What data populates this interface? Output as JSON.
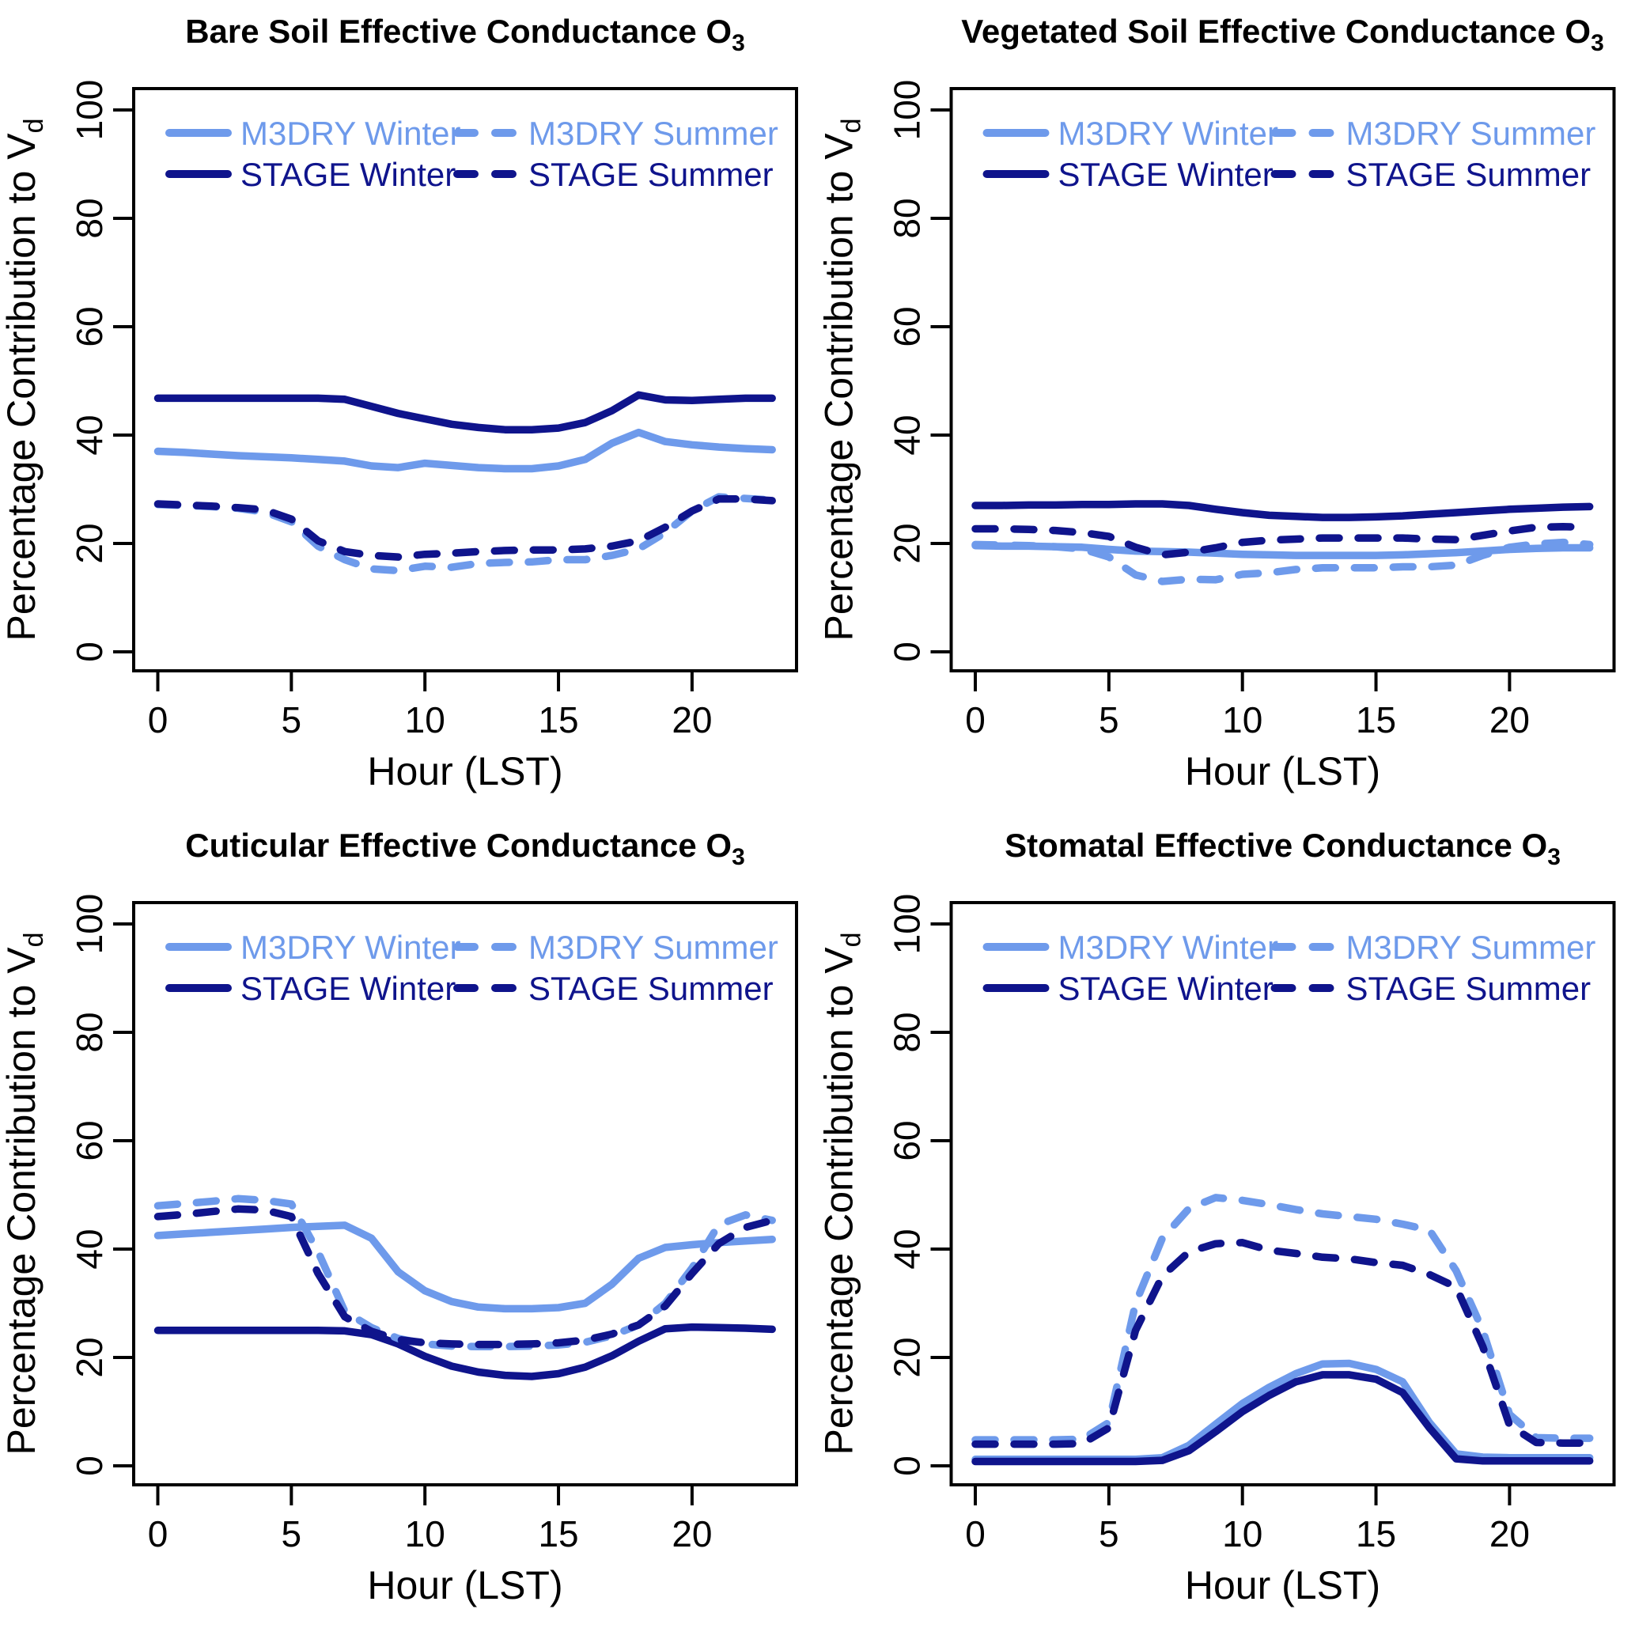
{
  "colors": {
    "m3dry": "#6E9AEB",
    "stage": "#0F148C",
    "axis": "#000000",
    "background": "#FFFFFF"
  },
  "legend": {
    "labels": [
      "M3DRY Winter",
      "STAGE Winter",
      "M3DRY Summer",
      "STAGE Summer"
    ]
  },
  "axes": {
    "xlabel": "Hour (LST)",
    "ylabel_main": "Percentage Contribution to V",
    "ylabel_sub": "d",
    "xticks": [
      0,
      5,
      10,
      15,
      20
    ],
    "yticks": [
      0,
      20,
      40,
      60,
      80,
      100
    ],
    "xlim": [
      0,
      23
    ],
    "ylim": [
      0,
      100
    ]
  },
  "chart_data": [
    {
      "type": "line",
      "slug": "bare-soil",
      "title_main": "Bare Soil Effective Conductance O",
      "title_sub": "3",
      "xlabel": "Hour (LST)",
      "ylabel": "Percentage Contribution to Vd",
      "x": [
        0,
        1,
        2,
        3,
        4,
        5,
        6,
        7,
        8,
        9,
        10,
        11,
        12,
        13,
        14,
        15,
        16,
        17,
        18,
        19,
        20,
        21,
        22,
        23
      ],
      "series": [
        {
          "name": "M3DRY Winter",
          "model": "m3dry",
          "season": "winter",
          "dashed": false,
          "values": [
            37,
            36.8,
            36.5,
            36.2,
            36,
            35.8,
            35.5,
            35.2,
            34.3,
            34,
            34.8,
            34.4,
            34,
            33.8,
            33.8,
            34.3,
            35.5,
            38.5,
            40.5,
            38.8,
            38.2,
            37.8,
            37.5,
            37.3
          ]
        },
        {
          "name": "STAGE Winter",
          "model": "stage",
          "season": "winter",
          "dashed": false,
          "values": [
            46.8,
            46.8,
            46.8,
            46.8,
            46.8,
            46.8,
            46.8,
            46.6,
            45.3,
            44,
            43,
            42,
            41.4,
            41,
            41,
            41.3,
            42.3,
            44.5,
            47.4,
            46.5,
            46.4,
            46.6,
            46.8,
            46.8
          ]
        },
        {
          "name": "M3DRY Summer",
          "model": "m3dry",
          "season": "summer",
          "dashed": true,
          "values": [
            27.2,
            27,
            26.8,
            26.5,
            25.8,
            24,
            19.5,
            17,
            15.3,
            15,
            15.8,
            15.6,
            16.3,
            16.5,
            16.6,
            17,
            17,
            17.8,
            19,
            22,
            26,
            28.6,
            28.3,
            28
          ]
        },
        {
          "name": "STAGE Summer",
          "model": "stage",
          "season": "summer",
          "dashed": true,
          "values": [
            27.3,
            27.1,
            26.9,
            26.6,
            26.2,
            24.5,
            20.5,
            18.5,
            17.8,
            17.5,
            18,
            18.2,
            18.5,
            18.7,
            18.8,
            18.8,
            19,
            19.5,
            20.5,
            23,
            26,
            28.2,
            28.2,
            27.9
          ]
        }
      ]
    },
    {
      "type": "line",
      "slug": "vegetated-soil",
      "title_main": "Vegetated Soil Effective Conductance O",
      "title_sub": "3",
      "xlabel": "Hour (LST)",
      "ylabel": "Percentage Contribution to Vd",
      "x": [
        0,
        1,
        2,
        3,
        4,
        5,
        6,
        7,
        8,
        9,
        10,
        11,
        12,
        13,
        14,
        15,
        16,
        17,
        18,
        19,
        20,
        21,
        22,
        23
      ],
      "series": [
        {
          "name": "M3DRY Winter",
          "model": "m3dry",
          "season": "winter",
          "dashed": false,
          "values": [
            19.6,
            19.5,
            19.5,
            19.4,
            19.3,
            18.9,
            18.6,
            18.5,
            18.4,
            18.2,
            18,
            17.9,
            17.8,
            17.8,
            17.8,
            17.8,
            17.9,
            18.1,
            18.3,
            18.6,
            18.9,
            19.1,
            19.2,
            19.2
          ]
        },
        {
          "name": "STAGE Winter",
          "model": "stage",
          "season": "winter",
          "dashed": false,
          "values": [
            27,
            27,
            27.1,
            27.1,
            27.2,
            27.2,
            27.3,
            27.3,
            27,
            26.3,
            25.7,
            25.2,
            25,
            24.8,
            24.8,
            24.9,
            25.1,
            25.4,
            25.7,
            26,
            26.3,
            26.5,
            26.7,
            26.8
          ]
        },
        {
          "name": "M3DRY Summer",
          "model": "m3dry",
          "season": "summer",
          "dashed": true,
          "values": [
            19.8,
            19.7,
            19.6,
            19.4,
            19,
            17.5,
            14.2,
            13,
            13.4,
            13.3,
            14.3,
            14.6,
            15.2,
            15.5,
            15.5,
            15.5,
            15.7,
            15.7,
            16,
            17.8,
            19.3,
            19.9,
            20.2,
            19.8
          ]
        },
        {
          "name": "STAGE Summer",
          "model": "stage",
          "season": "summer",
          "dashed": true,
          "values": [
            22.7,
            22.7,
            22.6,
            22.4,
            22,
            21.3,
            19.3,
            17.9,
            18.4,
            19.2,
            20.2,
            20.6,
            20.8,
            21,
            21,
            21,
            21,
            20.8,
            20.7,
            21.5,
            22.3,
            23,
            23.1,
            23
          ]
        }
      ]
    },
    {
      "type": "line",
      "slug": "cuticular",
      "title_main": "Cuticular Effective Conductance O",
      "title_sub": "3",
      "xlabel": "Hour (LST)",
      "ylabel": "Percentage Contribution to Vd",
      "x": [
        0,
        1,
        2,
        3,
        4,
        5,
        6,
        7,
        8,
        9,
        10,
        11,
        12,
        13,
        14,
        15,
        16,
        17,
        18,
        19,
        20,
        21,
        22,
        23
      ],
      "series": [
        {
          "name": "M3DRY Winter",
          "model": "m3dry",
          "season": "winter",
          "dashed": false,
          "values": [
            42.5,
            42.8,
            43.1,
            43.4,
            43.7,
            44,
            44.2,
            44.4,
            42,
            35.8,
            32.3,
            30.3,
            29.3,
            29,
            29,
            29.2,
            30,
            33.5,
            38.3,
            40.3,
            40.8,
            41.2,
            41.5,
            41.8
          ]
        },
        {
          "name": "STAGE Winter",
          "model": "stage",
          "season": "winter",
          "dashed": false,
          "values": [
            25,
            25,
            25,
            25,
            25,
            25,
            25,
            24.9,
            24.2,
            22.5,
            20.2,
            18.4,
            17.3,
            16.7,
            16.5,
            17,
            18.2,
            20.3,
            23,
            25.3,
            25.6,
            25.5,
            25.4,
            25.2
          ]
        },
        {
          "name": "M3DRY Summer",
          "model": "m3dry",
          "season": "summer",
          "dashed": true,
          "values": [
            48,
            48.4,
            48.8,
            49.3,
            49,
            48.3,
            39.5,
            28.5,
            25.5,
            23.5,
            22.5,
            22.1,
            22,
            22,
            22.1,
            22.3,
            22.8,
            24,
            26,
            30,
            36.5,
            44.5,
            46.3,
            45.3
          ]
        },
        {
          "name": "STAGE Summer",
          "model": "stage",
          "season": "summer",
          "dashed": true,
          "values": [
            46,
            46.4,
            46.9,
            47.4,
            47.2,
            46,
            35.5,
            27.5,
            24.8,
            23.3,
            22.7,
            22.5,
            22.4,
            22.4,
            22.5,
            22.7,
            23.2,
            24.3,
            26,
            29.5,
            35.5,
            41,
            44,
            45.3
          ]
        }
      ]
    },
    {
      "type": "line",
      "slug": "stomatal",
      "title_main": "Stomatal Effective Conductance O",
      "title_sub": "3",
      "xlabel": "Hour (LST)",
      "ylabel": "Percentage Contribution to Vd",
      "x": [
        0,
        1,
        2,
        3,
        4,
        5,
        6,
        7,
        8,
        9,
        10,
        11,
        12,
        13,
        14,
        15,
        16,
        17,
        18,
        19,
        20,
        21,
        22,
        23
      ],
      "series": [
        {
          "name": "M3DRY Winter",
          "model": "m3dry",
          "season": "winter",
          "dashed": false,
          "values": [
            1.2,
            1.2,
            1.2,
            1.2,
            1.2,
            1.2,
            1.2,
            1.5,
            3.8,
            7.7,
            11.5,
            14.5,
            17,
            18.8,
            18.9,
            17.8,
            15.5,
            8,
            2.2,
            1.6,
            1.5,
            1.5,
            1.5,
            1.5
          ]
        },
        {
          "name": "STAGE Winter",
          "model": "stage",
          "season": "winter",
          "dashed": false,
          "values": [
            0.8,
            0.8,
            0.8,
            0.8,
            0.8,
            0.8,
            0.8,
            1,
            2.8,
            6.3,
            10,
            13,
            15.5,
            16.8,
            16.8,
            16,
            13.5,
            7,
            1.3,
            0.9,
            0.9,
            0.9,
            0.9,
            0.9
          ]
        },
        {
          "name": "M3DRY Summer",
          "model": "m3dry",
          "season": "summer",
          "dashed": true,
          "values": [
            4.8,
            4.8,
            4.8,
            4.8,
            4.9,
            8,
            30,
            42,
            47.5,
            49.5,
            49,
            48.2,
            47.3,
            46.5,
            46,
            45.5,
            44.6,
            43.5,
            36,
            25,
            9.5,
            5.2,
            5.1,
            5.1
          ]
        },
        {
          "name": "STAGE Summer",
          "model": "stage",
          "season": "summer",
          "dashed": true,
          "values": [
            4,
            4,
            4,
            4,
            4.1,
            7,
            25,
            35,
            39.5,
            41,
            41.2,
            39.8,
            39.2,
            38.5,
            38.2,
            37.5,
            37,
            35.3,
            33,
            22,
            7.5,
            4.3,
            4.2,
            4.2
          ]
        }
      ]
    }
  ]
}
